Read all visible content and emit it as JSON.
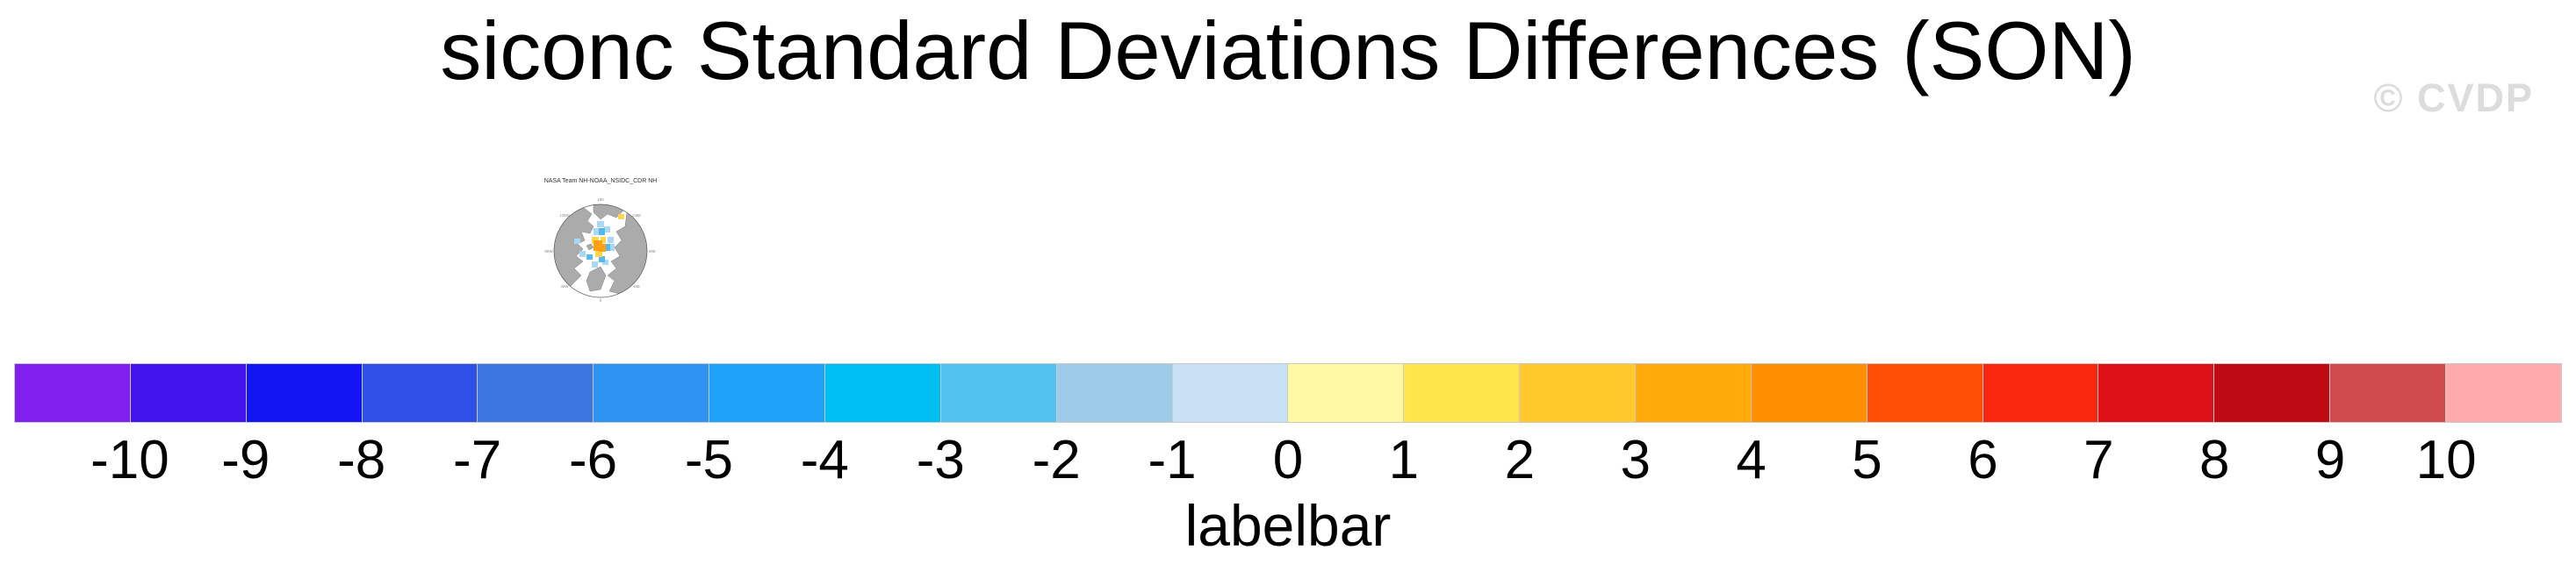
{
  "title": "siconc Standard Deviations Differences (SON)",
  "watermark": "© CVDP",
  "mini_map": {
    "title": "NASA Team NH-NOAA_NSIDC_CDR NH",
    "grid_labels": [
      "180",
      "135E",
      "90E",
      "45E",
      "0",
      "45W",
      "90W",
      "135W"
    ],
    "land_color": "#ababab",
    "ocean_color": "#ffffff"
  },
  "chart_data": {
    "type": "heatmap",
    "title": "siconc Standard Deviations Differences (SON)",
    "season": "SON",
    "variable": "siconc",
    "colorbar": {
      "caption": "labelbar",
      "orientation": "horizontal",
      "tick_labels": [
        "-10",
        "-9",
        "-8",
        "-7",
        "-6",
        "-5",
        "-4",
        "-3",
        "-2",
        "-1",
        "0",
        "1",
        "2",
        "3",
        "4",
        "5",
        "6",
        "7",
        "8",
        "9",
        "10"
      ],
      "tick_values": [
        -10,
        -9,
        -8,
        -7,
        -6,
        -5,
        -4,
        -3,
        -2,
        -1,
        0,
        1,
        2,
        3,
        4,
        5,
        6,
        7,
        8,
        9,
        10
      ],
      "segment_colors": [
        "#8220F0",
        "#4314EC",
        "#1316F2",
        "#2E50E6",
        "#3B76E1",
        "#2E93F2",
        "#1EA1F8",
        "#00BFF2",
        "#52C3F1",
        "#9DCBE9",
        "#C7E0F3",
        "#FEF8A3",
        "#FFE44C",
        "#FFC92C",
        "#FFA90B",
        "#FF8F00",
        "#FF4F07",
        "#F8270D",
        "#DE1116",
        "#BE0A12",
        "#CE4A4C",
        "#FFAAAC"
      ],
      "bins_note": "22 discrete color bins; 21 ticks mark interior bin boundaries from -10 to 10; outer bins are < -10 and > 10"
    }
  }
}
